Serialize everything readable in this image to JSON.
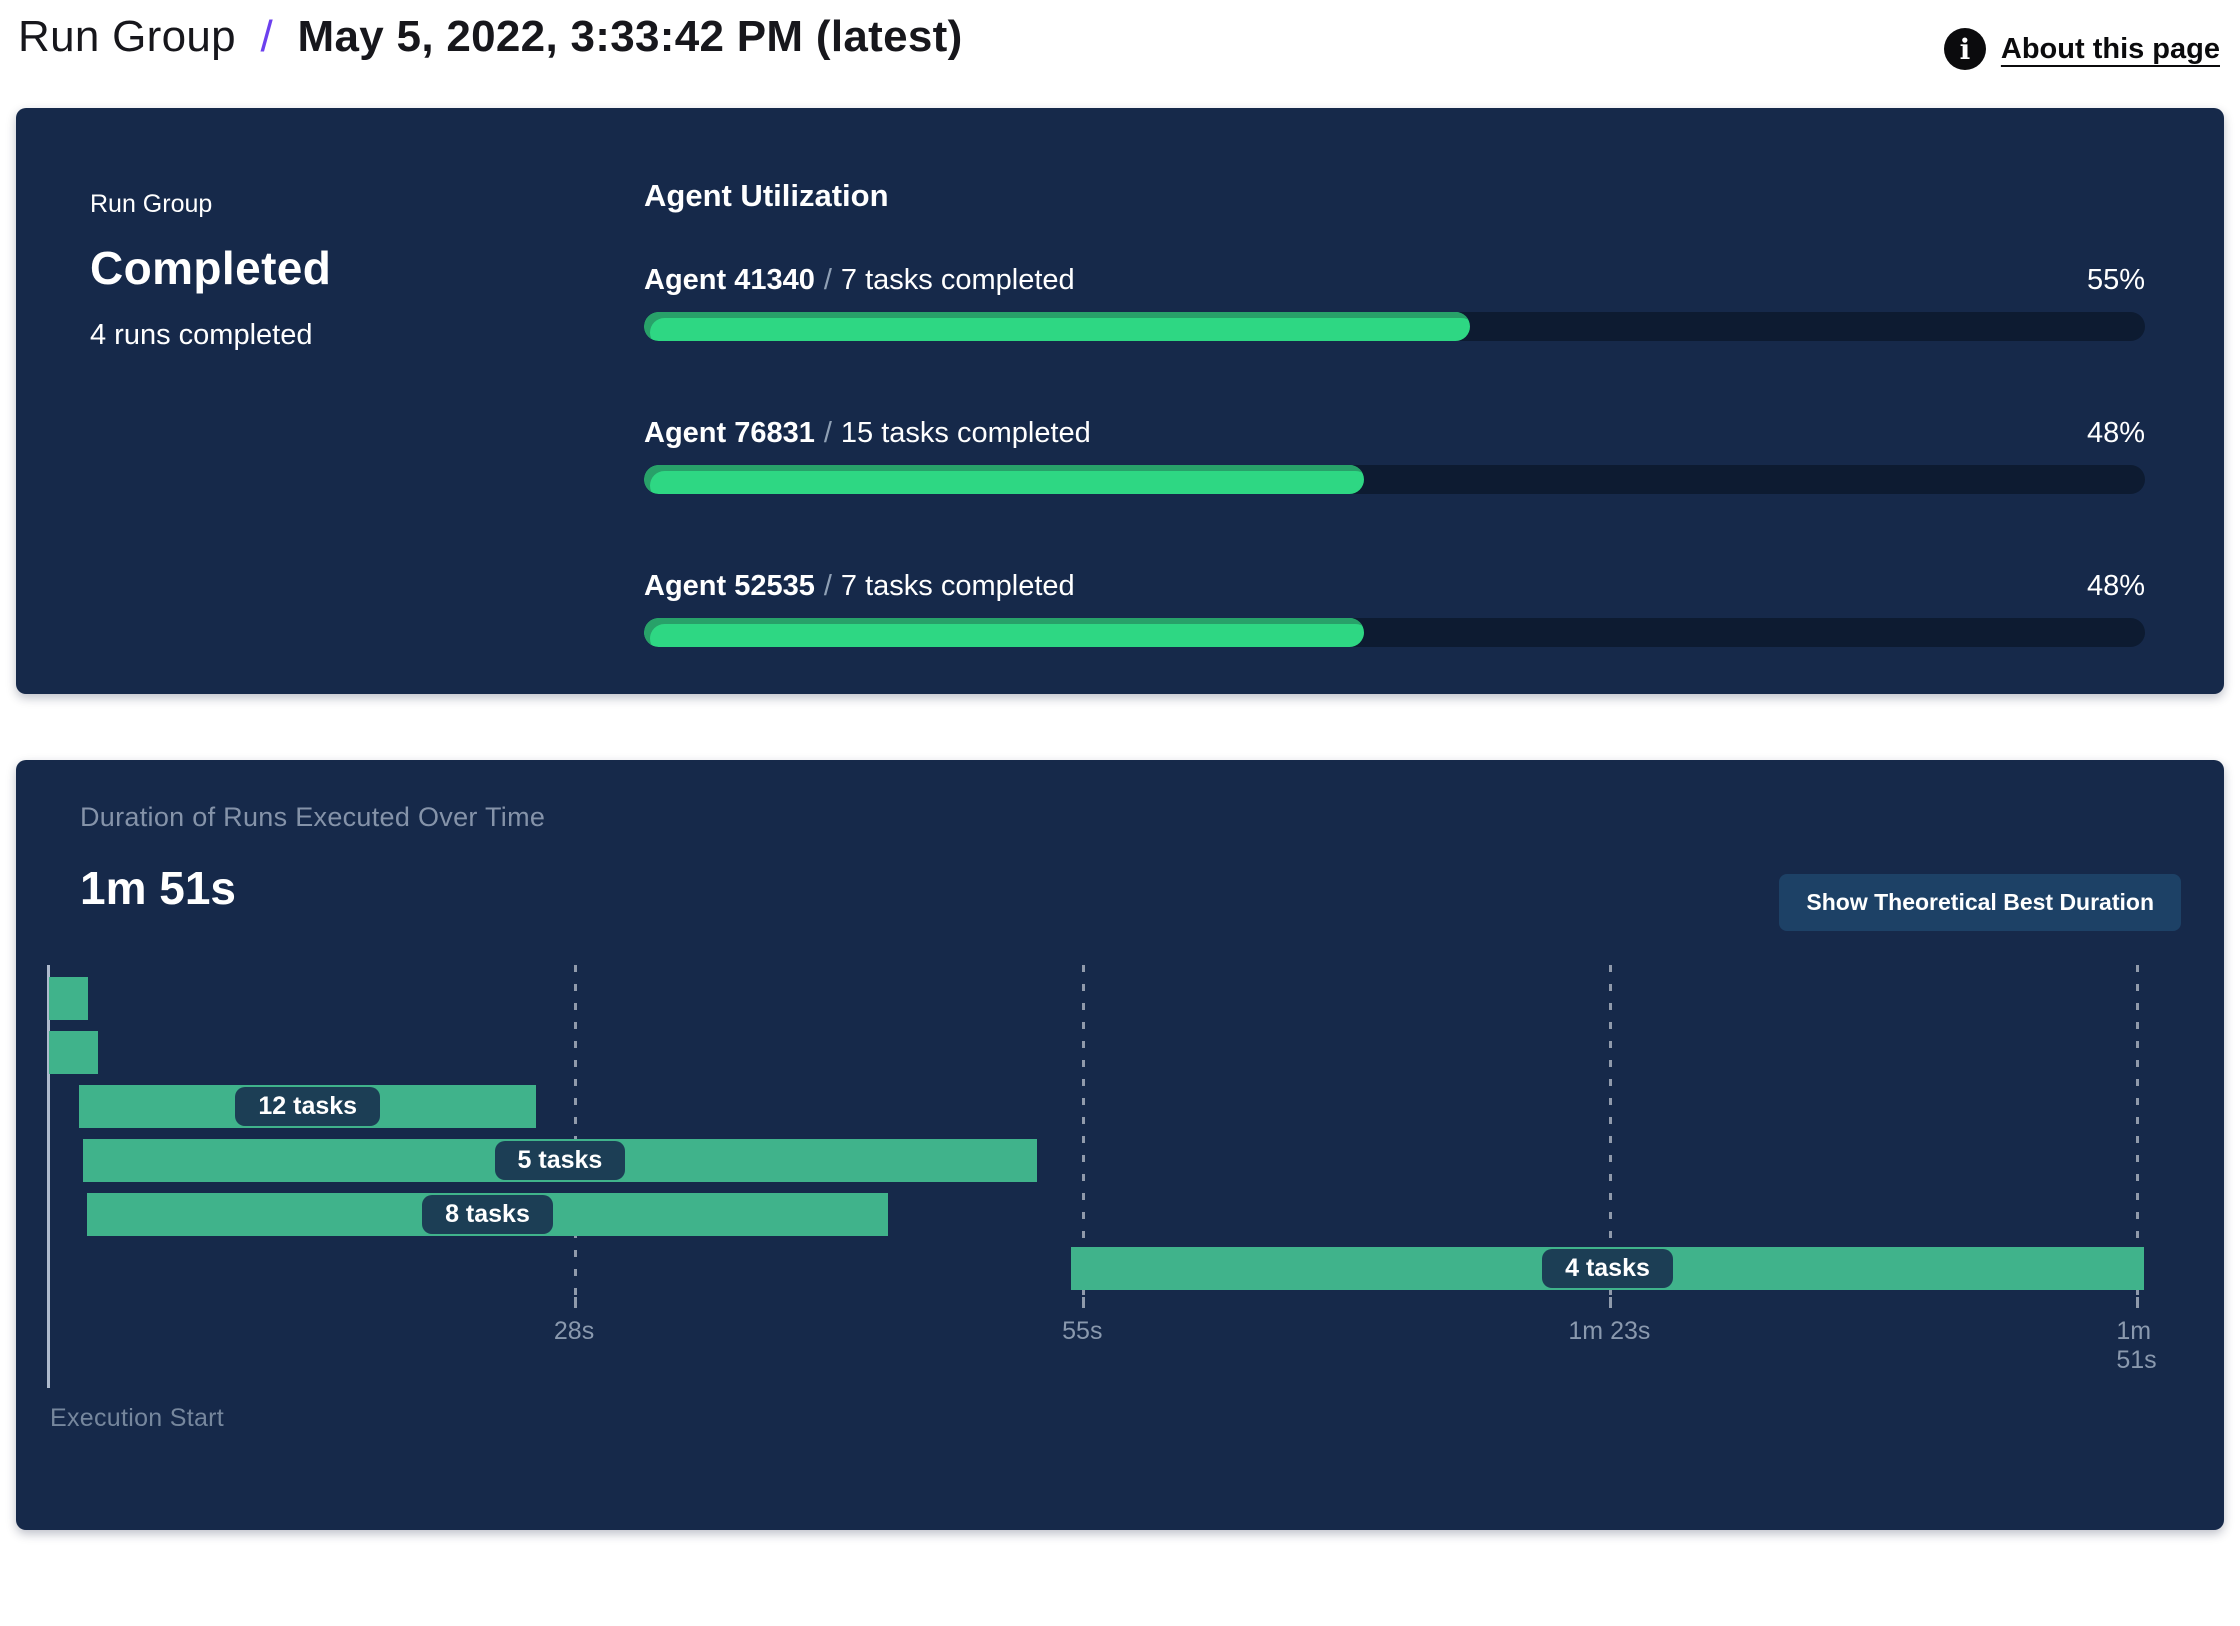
{
  "header": {
    "breadcrumb": {
      "root": "Run Group",
      "separator": "/",
      "current": "May 5, 2022, 3:33:42 PM (latest)"
    },
    "about": {
      "label": "About this page",
      "icon_glyph": "i"
    }
  },
  "run_group_panel": {
    "label": "Run Group",
    "status": "Completed",
    "runs_summary": "4 runs completed",
    "utilization": {
      "title": "Agent Utilization",
      "separator": "/",
      "agents": [
        {
          "name": "Agent 41340",
          "tasks_completed": "7 tasks completed",
          "percent_label": "55%",
          "percent": 55
        },
        {
          "name": "Agent 76831",
          "tasks_completed": "15 tasks completed",
          "percent_label": "48%",
          "percent": 48
        },
        {
          "name": "Agent 52535",
          "tasks_completed": "7 tasks completed",
          "percent_label": "48%",
          "percent": 48
        }
      ]
    }
  },
  "duration_panel": {
    "title": "Duration of Runs Executed Over Time",
    "total_duration": "1m 51s",
    "button_label": "Show Theoretical Best Duration",
    "execution_start_label": "Execution Start"
  },
  "chart_data": {
    "type": "gantt",
    "title": "Duration of Runs Executed Over Time",
    "total_duration_label": "1m 51s",
    "x_axis": {
      "unit": "seconds",
      "xlim_s": [
        0,
        111.4
      ],
      "grid": "dashed-vertical",
      "ticks": [
        {
          "label": "28s",
          "t_s": 28
        },
        {
          "label": "55s",
          "t_s": 55
        },
        {
          "label": "1m 23s",
          "t_s": 83
        },
        {
          "label": "1m 51s",
          "t_s": 111
        }
      ]
    },
    "rows": [
      {
        "label": "",
        "start_s": 0.1,
        "end_s": 2.2
      },
      {
        "label": "",
        "start_s": 0.1,
        "end_s": 2.7
      },
      {
        "label": "12 tasks",
        "start_s": 1.7,
        "end_s": 26.0
      },
      {
        "label": "5 tasks",
        "start_s": 1.9,
        "end_s": 52.6
      },
      {
        "label": "8 tasks",
        "start_s": 2.1,
        "end_s": 44.7
      },
      {
        "label": "4 tasks",
        "start_s": 54.4,
        "end_s": 111.4
      }
    ]
  },
  "colors": {
    "panel_bg": "#16294a",
    "progress_fill": "#2ed783",
    "progress_fill_shade": "#28a169",
    "progress_track": "#0d1b31",
    "gantt_bar": "#40b38b",
    "task_pill_bg": "#1c3e55",
    "accent_slash": "#6c40ee",
    "muted_text": "#8593a9"
  }
}
